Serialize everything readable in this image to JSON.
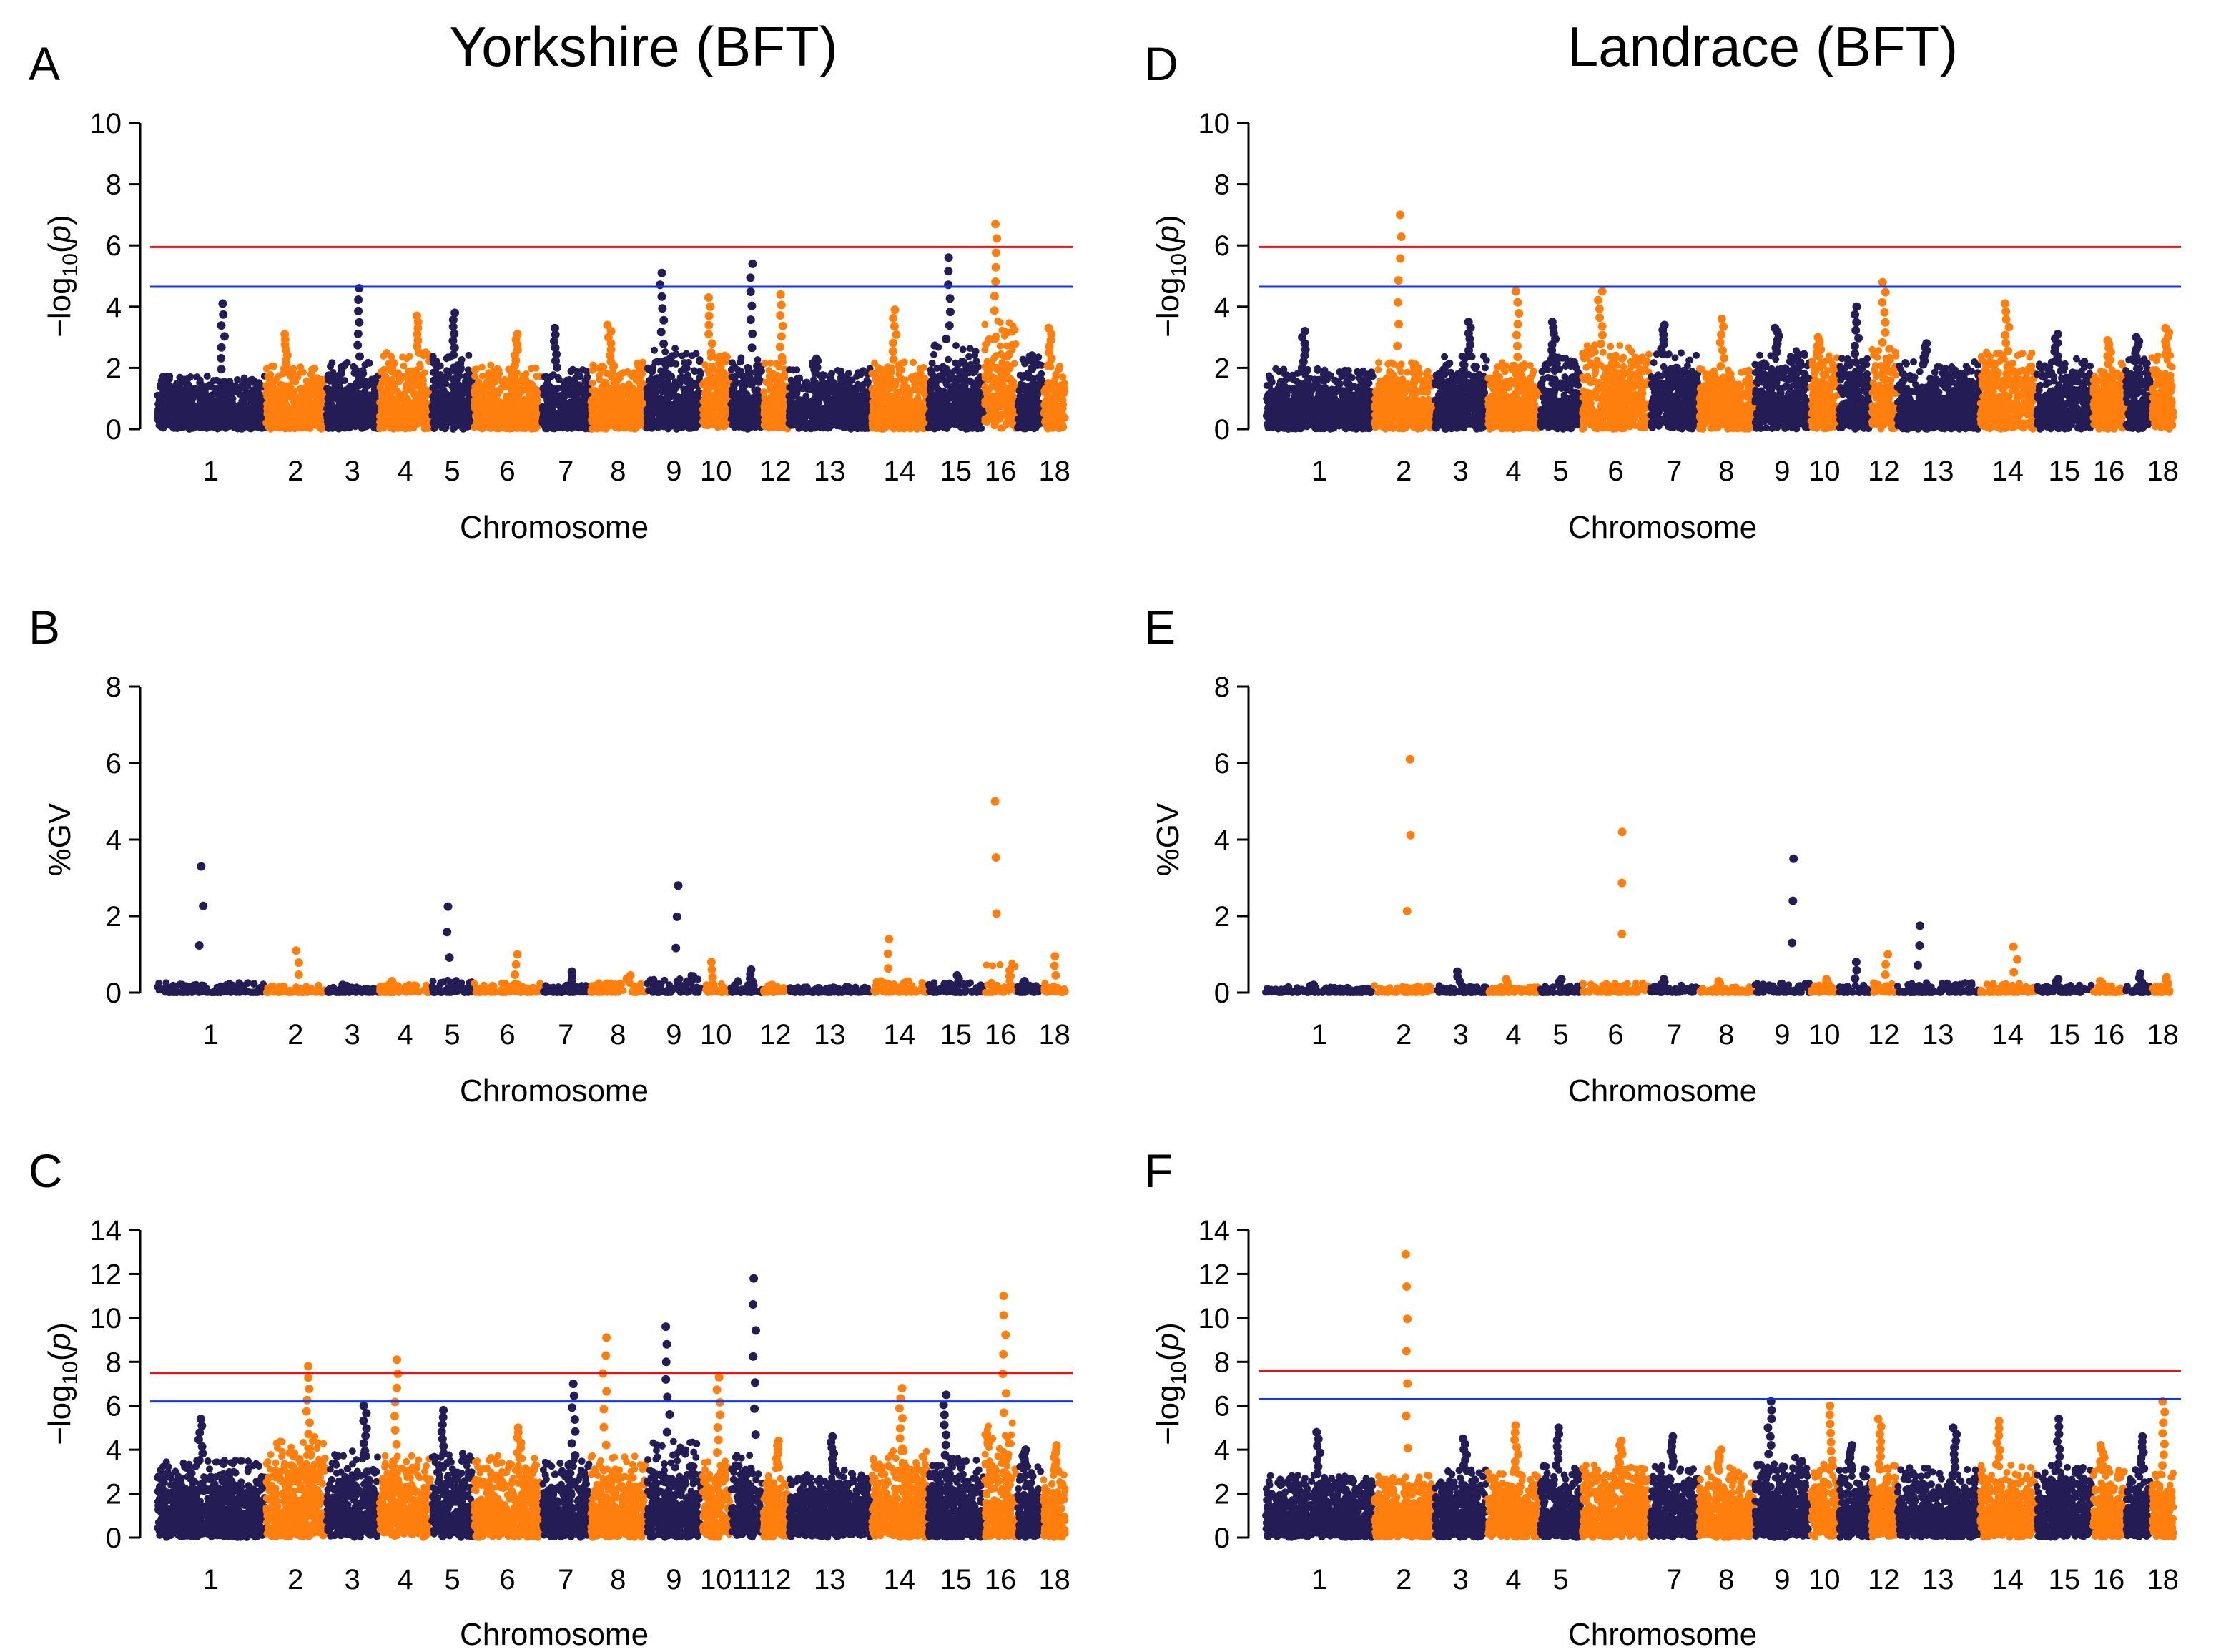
{
  "figure": {
    "column_titles": [
      "Yorkshire (BFT)",
      "Landrace (BFT)"
    ]
  },
  "colors": {
    "odd_chromosome": "#241c54",
    "even_chromosome": "#ff7f0e",
    "threshold_genomewide": "#ee1111",
    "threshold_suggestive": "#1133ee"
  },
  "chart_data": [
    {
      "panel": "A",
      "type": "scatter",
      "subtype": "manhattan",
      "title": "Yorkshire (BFT)",
      "xlabel": "Chromosome",
      "ylabel": "-log10(p)",
      "ylim": [
        0,
        10
      ],
      "yticks": [
        0,
        2,
        4,
        6,
        8,
        10
      ],
      "x_ticks": [
        "1",
        "2",
        "3",
        "4",
        "5",
        "6",
        "7",
        "8",
        "9",
        "10",
        "12",
        "13",
        "14",
        "15",
        "16",
        "18"
      ],
      "thresholds": [
        {
          "name": "genome-wide",
          "value": 5.95,
          "color": "#ee1111"
        },
        {
          "name": "suggestive",
          "value": 4.65,
          "color": "#1133ee"
        }
      ],
      "chromosomes": [
        {
          "chr": 1,
          "base": 1.6,
          "peak": 4.1
        },
        {
          "chr": 2,
          "base": 1.9,
          "peak": 3.1
        },
        {
          "chr": 3,
          "base": 2.0,
          "peak": 4.6
        },
        {
          "chr": 4,
          "base": 2.3,
          "peak": 3.7
        },
        {
          "chr": 5,
          "base": 2.2,
          "peak": 3.8
        },
        {
          "chr": 6,
          "base": 1.9,
          "peak": 3.1
        },
        {
          "chr": 7,
          "base": 1.8,
          "peak": 3.3
        },
        {
          "chr": 8,
          "base": 2.0,
          "peak": 3.4
        },
        {
          "chr": 9,
          "base": 2.4,
          "peak": 5.1
        },
        {
          "chr": 10,
          "base": 2.2,
          "peak": 4.3
        },
        {
          "chr": 11,
          "base": 2.2,
          "peak": 5.4
        },
        {
          "chr": 12,
          "base": 2.0,
          "peak": 4.4
        },
        {
          "chr": 13,
          "base": 1.8,
          "peak": 2.3
        },
        {
          "chr": 14,
          "base": 2.0,
          "peak": 3.9
        },
        {
          "chr": 15,
          "base": 2.5,
          "peak": 5.6
        },
        {
          "chr": 16,
          "base": 3.4,
          "peak": 6.7
        },
        {
          "chr": 17,
          "base": 2.2,
          "peak": 2.4
        },
        {
          "chr": 18,
          "base": 1.9,
          "peak": 3.3
        }
      ]
    },
    {
      "panel": "B",
      "type": "scatter",
      "subtype": "manhattan",
      "xlabel": "Chromosome",
      "ylabel": "%GV",
      "ylim": [
        0,
        8
      ],
      "yticks": [
        0,
        2,
        4,
        6,
        8
      ],
      "x_ticks": [
        "1",
        "2",
        "3",
        "4",
        "5",
        "6",
        "7",
        "8",
        "9",
        "10",
        "12",
        "13",
        "14",
        "15",
        "16",
        "18"
      ],
      "thresholds": [],
      "chromosomes": [
        {
          "chr": 1,
          "base": 0.2,
          "peak": 3.3
        },
        {
          "chr": 2,
          "base": 0.15,
          "peak": 1.1
        },
        {
          "chr": 3,
          "base": 0.12,
          "peak": 0.2
        },
        {
          "chr": 4,
          "base": 0.18,
          "peak": 0.3
        },
        {
          "chr": 5,
          "base": 0.25,
          "peak": 2.25
        },
        {
          "chr": 6,
          "base": 0.2,
          "peak": 1.0
        },
        {
          "chr": 7,
          "base": 0.15,
          "peak": 0.55
        },
        {
          "chr": 8,
          "base": 0.2,
          "peak": 0.45
        },
        {
          "chr": 9,
          "base": 0.35,
          "peak": 2.8
        },
        {
          "chr": 10,
          "base": 0.2,
          "peak": 0.8
        },
        {
          "chr": 11,
          "base": 0.25,
          "peak": 0.6
        },
        {
          "chr": 12,
          "base": 0.15,
          "peak": 0.2
        },
        {
          "chr": 13,
          "base": 0.12,
          "peak": 0.15
        },
        {
          "chr": 14,
          "base": 0.25,
          "peak": 1.4
        },
        {
          "chr": 15,
          "base": 0.2,
          "peak": 0.45
        },
        {
          "chr": 16,
          "base": 0.6,
          "peak": 5.0
        },
        {
          "chr": 17,
          "base": 0.15,
          "peak": 0.3
        },
        {
          "chr": 18,
          "base": 0.2,
          "peak": 0.95
        }
      ]
    },
    {
      "panel": "C",
      "type": "scatter",
      "subtype": "manhattan",
      "xlabel": "Chromosome",
      "ylabel": "-log10(p)",
      "ylim": [
        0,
        14
      ],
      "yticks": [
        0,
        2,
        4,
        6,
        8,
        10,
        12,
        14
      ],
      "x_ticks": [
        "1",
        "2",
        "3",
        "4",
        "5",
        "6",
        "7",
        "8",
        "9",
        "10",
        "11",
        "12",
        "13",
        "14",
        "15",
        "16",
        "18"
      ],
      "thresholds": [
        {
          "name": "genome-wide",
          "value": 7.5,
          "color": "#ee1111"
        },
        {
          "name": "suggestive",
          "value": 6.2,
          "color": "#1133ee"
        }
      ],
      "chromosomes": [
        {
          "chr": 1,
          "base": 3.2,
          "peak": 5.4
        },
        {
          "chr": 2,
          "base": 4.2,
          "peak": 7.8
        },
        {
          "chr": 3,
          "base": 3.6,
          "peak": 6.0
        },
        {
          "chr": 4,
          "base": 3.6,
          "peak": 8.1
        },
        {
          "chr": 5,
          "base": 3.5,
          "peak": 5.8
        },
        {
          "chr": 6,
          "base": 3.4,
          "peak": 5.0
        },
        {
          "chr": 7,
          "base": 3.2,
          "peak": 7.0
        },
        {
          "chr": 8,
          "base": 3.4,
          "peak": 9.1
        },
        {
          "chr": 9,
          "base": 4.0,
          "peak": 9.6
        },
        {
          "chr": 10,
          "base": 3.3,
          "peak": 7.3
        },
        {
          "chr": 11,
          "base": 3.5,
          "peak": 11.8
        },
        {
          "chr": 12,
          "base": 3.0,
          "peak": 4.4
        },
        {
          "chr": 13,
          "base": 2.8,
          "peak": 4.6
        },
        {
          "chr": 14,
          "base": 3.6,
          "peak": 6.8
        },
        {
          "chr": 15,
          "base": 3.3,
          "peak": 6.5
        },
        {
          "chr": 16,
          "base": 4.8,
          "peak": 11.0
        },
        {
          "chr": 17,
          "base": 3.0,
          "peak": 4.0
        },
        {
          "chr": 18,
          "base": 2.9,
          "peak": 4.2
        }
      ]
    },
    {
      "panel": "D",
      "type": "scatter",
      "subtype": "manhattan",
      "title": "Landrace (BFT)",
      "xlabel": "Chromosome",
      "ylabel": "-log10(p)",
      "ylim": [
        0,
        10
      ],
      "yticks": [
        0,
        2,
        4,
        6,
        8,
        10
      ],
      "x_ticks": [
        "1",
        "2",
        "3",
        "4",
        "5",
        "6",
        "7",
        "8",
        "9",
        "10",
        "12",
        "13",
        "14",
        "15",
        "16",
        "18"
      ],
      "thresholds": [
        {
          "name": "genome-wide",
          "value": 5.95,
          "color": "#ee1111"
        },
        {
          "name": "suggestive",
          "value": 4.65,
          "color": "#1133ee"
        }
      ],
      "chromosomes": [
        {
          "chr": 1,
          "base": 1.8,
          "peak": 3.2
        },
        {
          "chr": 2,
          "base": 2.0,
          "peak": 7.0
        },
        {
          "chr": 3,
          "base": 2.2,
          "peak": 3.5
        },
        {
          "chr": 4,
          "base": 2.0,
          "peak": 4.5
        },
        {
          "chr": 5,
          "base": 2.2,
          "peak": 3.5
        },
        {
          "chr": 6,
          "base": 2.5,
          "peak": 4.5
        },
        {
          "chr": 7,
          "base": 2.3,
          "peak": 3.4
        },
        {
          "chr": 8,
          "base": 1.8,
          "peak": 3.6
        },
        {
          "chr": 9,
          "base": 2.4,
          "peak": 3.3
        },
        {
          "chr": 10,
          "base": 2.3,
          "peak": 3.0
        },
        {
          "chr": 11,
          "base": 2.2,
          "peak": 4.0
        },
        {
          "chr": 12,
          "base": 2.5,
          "peak": 4.8
        },
        {
          "chr": 13,
          "base": 2.0,
          "peak": 2.8
        },
        {
          "chr": 14,
          "base": 2.3,
          "peak": 4.1
        },
        {
          "chr": 15,
          "base": 2.1,
          "peak": 3.1
        },
        {
          "chr": 16,
          "base": 2.0,
          "peak": 2.9
        },
        {
          "chr": 17,
          "base": 2.1,
          "peak": 3.0
        },
        {
          "chr": 18,
          "base": 2.3,
          "peak": 3.3
        }
      ]
    },
    {
      "panel": "E",
      "type": "scatter",
      "subtype": "manhattan",
      "xlabel": "Chromosome",
      "ylabel": "%GV",
      "ylim": [
        0,
        8
      ],
      "yticks": [
        0,
        2,
        4,
        6,
        8
      ],
      "x_ticks": [
        "1",
        "2",
        "3",
        "4",
        "5",
        "6",
        "7",
        "8",
        "9",
        "10",
        "12",
        "13",
        "14",
        "15",
        "16",
        "18"
      ],
      "thresholds": [],
      "chromosomes": [
        {
          "chr": 1,
          "base": 0.12,
          "peak": 0.2
        },
        {
          "chr": 2,
          "base": 0.15,
          "peak": 6.1
        },
        {
          "chr": 3,
          "base": 0.15,
          "peak": 0.55
        },
        {
          "chr": 4,
          "base": 0.12,
          "peak": 0.35
        },
        {
          "chr": 5,
          "base": 0.15,
          "peak": 0.35
        },
        {
          "chr": 6,
          "base": 0.2,
          "peak": 4.2
        },
        {
          "chr": 7,
          "base": 0.15,
          "peak": 0.35
        },
        {
          "chr": 8,
          "base": 0.12,
          "peak": 0.3
        },
        {
          "chr": 9,
          "base": 0.2,
          "peak": 3.5
        },
        {
          "chr": 10,
          "base": 0.15,
          "peak": 0.35
        },
        {
          "chr": 11,
          "base": 0.15,
          "peak": 0.8
        },
        {
          "chr": 12,
          "base": 0.2,
          "peak": 1.0
        },
        {
          "chr": 13,
          "base": 0.2,
          "peak": 1.75
        },
        {
          "chr": 14,
          "base": 0.2,
          "peak": 1.2
        },
        {
          "chr": 15,
          "base": 0.15,
          "peak": 0.35
        },
        {
          "chr": 16,
          "base": 0.15,
          "peak": 0.3
        },
        {
          "chr": 17,
          "base": 0.15,
          "peak": 0.5
        },
        {
          "chr": 18,
          "base": 0.15,
          "peak": 0.4
        }
      ]
    },
    {
      "panel": "F",
      "type": "scatter",
      "subtype": "manhattan",
      "xlabel": "Chromosome",
      "ylabel": "-log10(p)",
      "ylim": [
        0,
        14
      ],
      "yticks": [
        0,
        2,
        4,
        6,
        8,
        10,
        12,
        14
      ],
      "x_ticks": [
        "1",
        "2",
        "3",
        "4",
        "5",
        "7",
        "8",
        "9",
        "10",
        "12",
        "13",
        "14",
        "15",
        "16",
        "18"
      ],
      "thresholds": [
        {
          "name": "genome-wide",
          "value": 7.6,
          "color": "#ee1111"
        },
        {
          "name": "suggestive",
          "value": 6.3,
          "color": "#1133ee"
        }
      ],
      "chromosomes": [
        {
          "chr": 1,
          "base": 2.6,
          "peak": 4.8
        },
        {
          "chr": 2,
          "base": 2.6,
          "peak": 12.9
        },
        {
          "chr": 3,
          "base": 2.8,
          "peak": 4.5
        },
        {
          "chr": 4,
          "base": 2.8,
          "peak": 5.1
        },
        {
          "chr": 5,
          "base": 3.0,
          "peak": 5.0
        },
        {
          "chr": 6,
          "base": 3.0,
          "peak": 4.4
        },
        {
          "chr": 7,
          "base": 3.0,
          "peak": 4.6
        },
        {
          "chr": 8,
          "base": 2.9,
          "peak": 4.0
        },
        {
          "chr": 9,
          "base": 3.4,
          "peak": 6.2
        },
        {
          "chr": 10,
          "base": 3.1,
          "peak": 6.0
        },
        {
          "chr": 11,
          "base": 2.9,
          "peak": 4.2
        },
        {
          "chr": 12,
          "base": 3.0,
          "peak": 5.4
        },
        {
          "chr": 13,
          "base": 2.9,
          "peak": 5.0
        },
        {
          "chr": 14,
          "base": 3.0,
          "peak": 5.3
        },
        {
          "chr": 15,
          "base": 3.0,
          "peak": 5.4
        },
        {
          "chr": 16,
          "base": 2.9,
          "peak": 4.2
        },
        {
          "chr": 17,
          "base": 2.9,
          "peak": 4.6
        },
        {
          "chr": 18,
          "base": 2.8,
          "peak": 6.2
        }
      ]
    }
  ]
}
